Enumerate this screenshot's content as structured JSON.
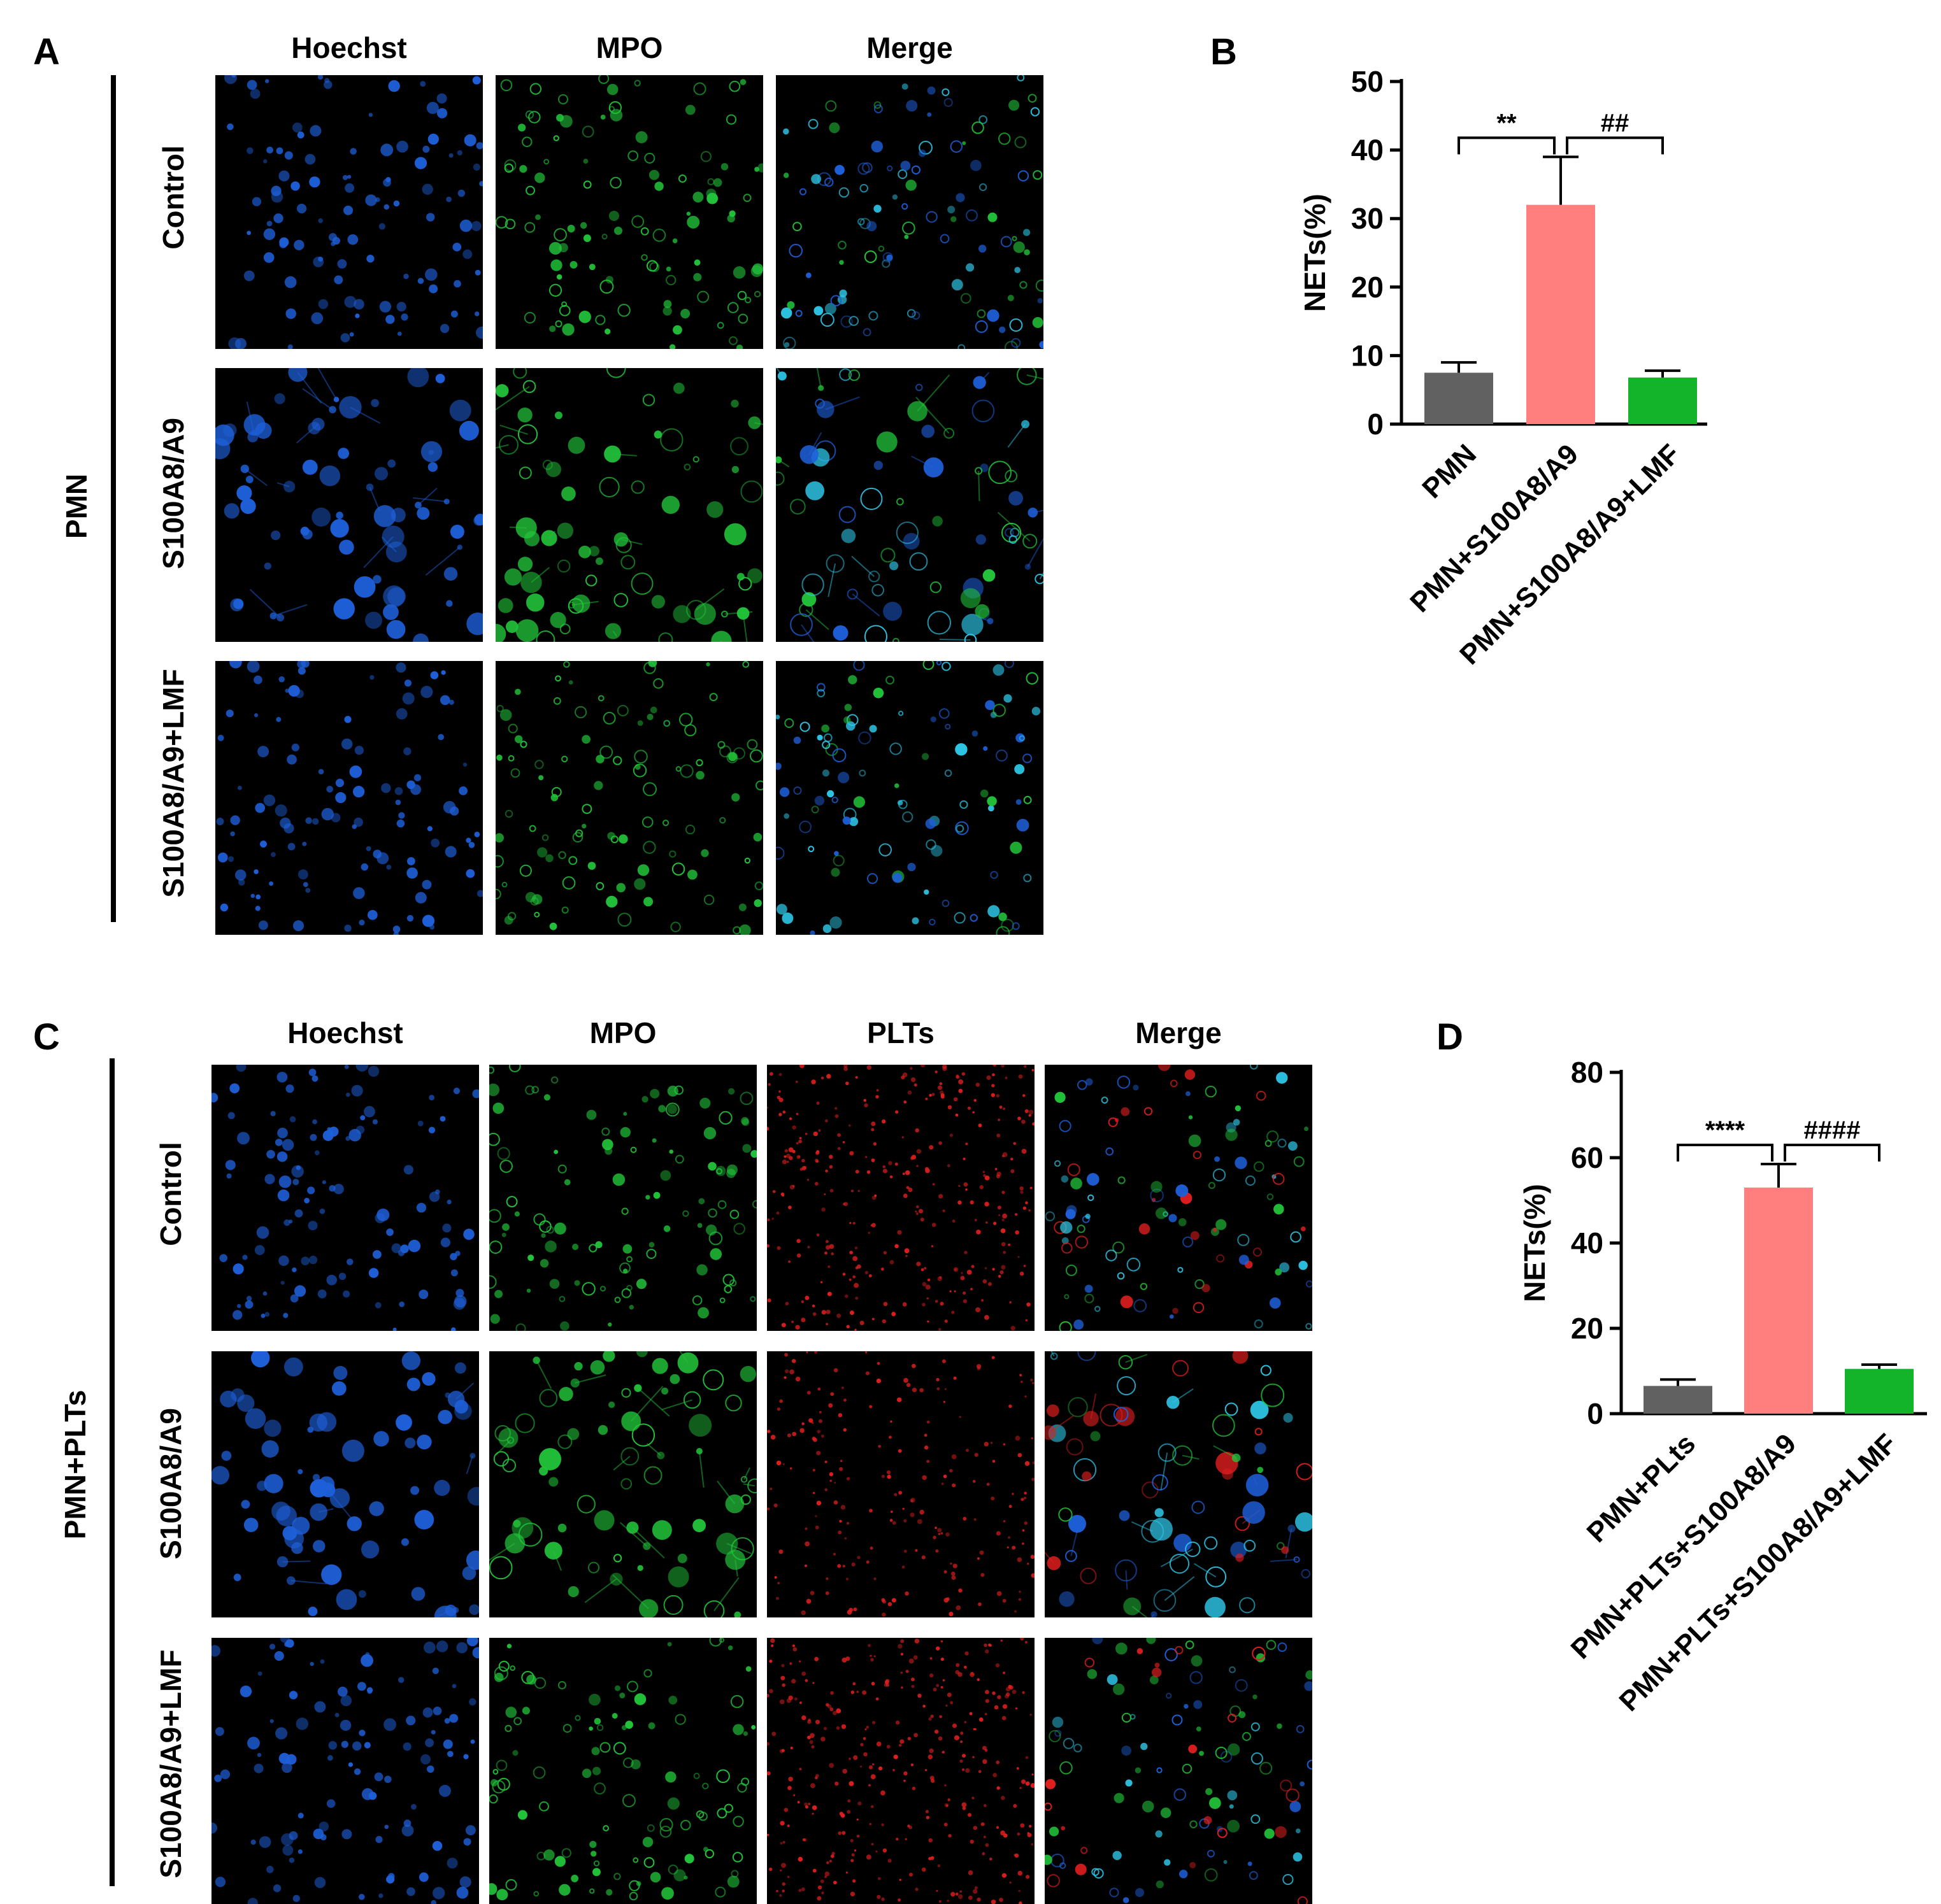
{
  "figure_A": {
    "letter": "A",
    "group_label": "PMN",
    "columns": [
      "Hoechst",
      "MPO",
      "Merge"
    ],
    "rows": [
      "Control",
      "S100A8/A9",
      "S100A8/A9+LMF"
    ]
  },
  "figure_C": {
    "letter": "C",
    "group_label": "PMN+PLTs",
    "columns": [
      "Hoechst",
      "MPO",
      "PLTs",
      "Merge"
    ],
    "rows": [
      "Control",
      "S100A8/A9",
      "S100A8/A9+LMF"
    ]
  },
  "colors": {
    "hoechst": "#1e5fd8",
    "mpo": "#22c43a",
    "plts": "#e01e1e",
    "merge": "#2ec7e8",
    "bar_gray": "#616161",
    "bar_pink": "#ff7f7f",
    "bar_green": "#14b42a"
  },
  "chart_data": [
    {
      "type": "bar",
      "letter": "B",
      "categories": [
        "PMN",
        "PMN+S100A8/A9",
        "PMN+S100A8/A9+LMF"
      ],
      "values": [
        7.5,
        32,
        6.8
      ],
      "errors": [
        1.5,
        7,
        1
      ],
      "colors": [
        "#616161",
        "#ff7f7f",
        "#14b42a"
      ],
      "ylabel": "NETs(%)",
      "ylim": [
        0,
        50
      ],
      "yticks": [
        0,
        10,
        20,
        30,
        40,
        50
      ],
      "significance": [
        {
          "from": 0,
          "to": 1,
          "label": "**"
        },
        {
          "from": 1,
          "to": 2,
          "label": "##"
        }
      ],
      "title": "",
      "xlabel": "",
      "grid": false
    },
    {
      "type": "bar",
      "letter": "D",
      "categories": [
        "PMN+PLts",
        "PMN+PLTs+S100A8/A9",
        "PMN+PLTs+S100A8/A9+LMF"
      ],
      "values": [
        6.5,
        53,
        10.5
      ],
      "errors": [
        1.5,
        5.5,
        1
      ],
      "colors": [
        "#616161",
        "#ff7f7f",
        "#14b42a"
      ],
      "ylabel": "NETs(%)",
      "ylim": [
        0,
        80
      ],
      "yticks": [
        0,
        20,
        40,
        60,
        80
      ],
      "significance": [
        {
          "from": 0,
          "to": 1,
          "label": "****"
        },
        {
          "from": 1,
          "to": 2,
          "label": "####"
        }
      ],
      "title": "",
      "xlabel": "",
      "grid": false
    }
  ]
}
